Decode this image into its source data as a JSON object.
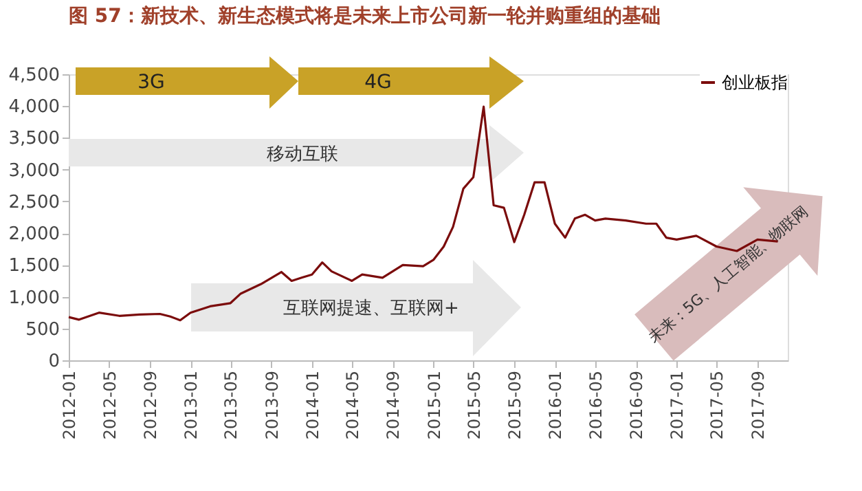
{
  "chart_data": {
    "type": "line",
    "title": "图 57：新技术、新生态模式将是未来上市公司新一轮并购重组的基础",
    "x": [
      "2012-01",
      "2012-02",
      "2012-04",
      "2012-06",
      "2012-08",
      "2012-10",
      "2012-11",
      "2012-12",
      "2013-01",
      "2013-03",
      "2013-05",
      "2013-06",
      "2013-08",
      "2013-10",
      "2013-11",
      "2013-12",
      "2014-01",
      "2014-02",
      "2014-03",
      "2014-05",
      "2014-06",
      "2014-08",
      "2014-10",
      "2014-12",
      "2015-01",
      "2015-02",
      "2015-03",
      "2015-04",
      "2015-05",
      "2015-06",
      "2015-07",
      "2015-08",
      "2015-09",
      "2015-10",
      "2015-11",
      "2015-12",
      "2016-01",
      "2016-02",
      "2016-03",
      "2016-04",
      "2016-05",
      "2016-06",
      "2016-08",
      "2016-10",
      "2016-11",
      "2016-12",
      "2017-01",
      "2017-03",
      "2017-05",
      "2017-07",
      "2017-09",
      "2017-11"
    ],
    "series": [
      {
        "name": "创业板指",
        "color": "#7b0c0c",
        "values": [
          680,
          640,
          750,
          700,
          720,
          730,
          690,
          630,
          750,
          850,
          900,
          1050,
          1200,
          1390,
          1250,
          1300,
          1350,
          1540,
          1400,
          1250,
          1350,
          1300,
          1500,
          1480,
          1580,
          1790,
          2100,
          2700,
          2880,
          3990,
          2440,
          2400,
          1860,
          2290,
          2800,
          2800,
          2150,
          1930,
          2230,
          2290,
          2200,
          2230,
          2200,
          2150,
          2150,
          1930,
          1900,
          1960,
          1790,
          1720,
          1900,
          1870
        ]
      }
    ],
    "xlim": [
      "2012-01",
      "2017-12"
    ],
    "xticks": [
      "2012-01",
      "2012-05",
      "2012-09",
      "2013-01",
      "2013-05",
      "2013-09",
      "2014-01",
      "2014-05",
      "2014-09",
      "2015-01",
      "2015-05",
      "2015-09",
      "2016-01",
      "2016-05",
      "2016-09",
      "2017-01",
      "2017-05",
      "2017-09"
    ],
    "ylim": [
      0,
      4500
    ],
    "yticks": [
      0,
      500,
      {
        "value": 1000,
        "label": "1,000"
      },
      {
        "value": 1500,
        "label": "1,500"
      },
      {
        "value": 2000,
        "label": "2,000"
      },
      {
        "value": 2500,
        "label": "2,500"
      },
      {
        "value": 3000,
        "label": "3,000"
      },
      {
        "value": 3500,
        "label": "3,500"
      },
      {
        "value": 4000,
        "label": "4,000"
      },
      {
        "value": 4500,
        "label": "4,500"
      }
    ],
    "grid": false,
    "legend": "top right",
    "line_style": "solid",
    "marker": "none",
    "annotations": [
      "3G",
      "4G",
      "移动互联",
      "互联网提速、互联网+",
      "未来：5G、人工智能、物联网"
    ]
  }
}
